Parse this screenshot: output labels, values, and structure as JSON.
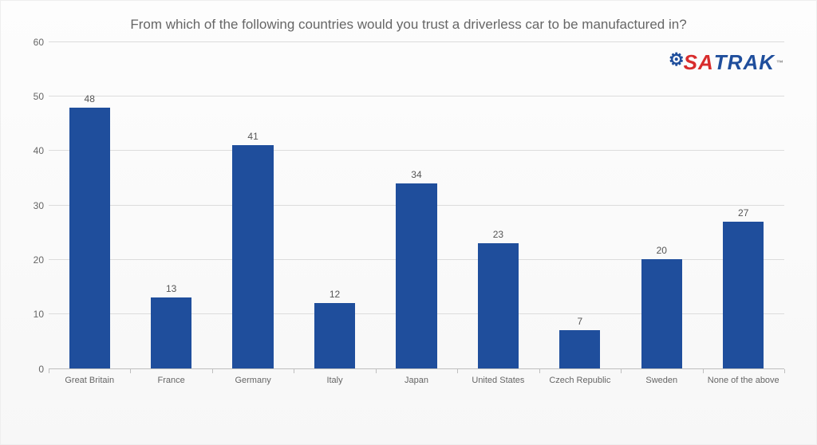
{
  "chart": {
    "type": "bar",
    "title": "From which of the following countries would you trust a driverless car to be manufactured in?",
    "title_color": "#666666",
    "title_fontsize": 17,
    "categories": [
      "Great Britain",
      "France",
      "Germany",
      "Italy",
      "Japan",
      "United States",
      "Czech Republic",
      "Sweden",
      "None of the above"
    ],
    "values": [
      48,
      13,
      41,
      12,
      34,
      23,
      7,
      20,
      27
    ],
    "bar_color": "#1f4e9c",
    "bar_width_ratio": 0.5,
    "value_label_color": "#555555",
    "value_label_fontsize": 12,
    "ylim": [
      0,
      60
    ],
    "ytick_step": 10,
    "yticks": [
      0,
      10,
      20,
      30,
      40,
      50,
      60
    ],
    "axis_label_color": "#666666",
    "axis_label_fontsize": 12,
    "x_label_fontsize": 11,
    "grid_color": "#dcdcdc",
    "axis_line_color": "#bfbfbf",
    "background_gradient": [
      "#fdfdfd",
      "#f7f7f7"
    ]
  },
  "logo": {
    "text_sa": "SA",
    "text_trak": "TRAK",
    "color_sa": "#d82c2c",
    "color_trak": "#1f4e9c",
    "gear_glyph": "⚙",
    "tm": "™"
  }
}
